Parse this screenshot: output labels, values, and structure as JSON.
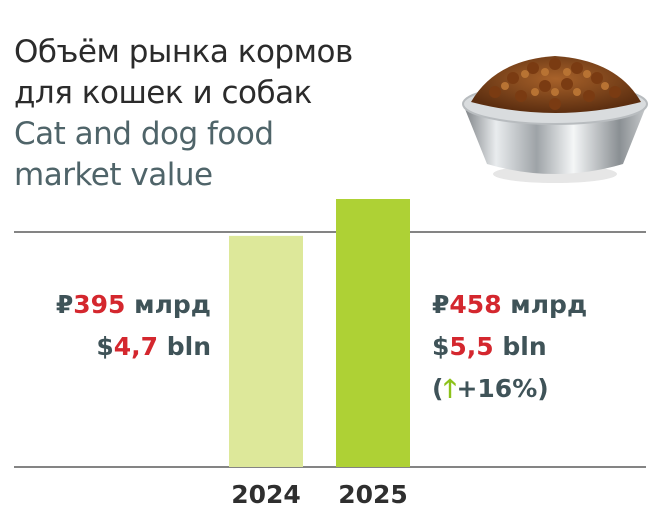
{
  "title": {
    "ru_line1": "Объём рынка кормов",
    "ru_line2": "для кошек и собак",
    "en_line1": "Cat and dog food",
    "en_line2": "market value"
  },
  "chart_data": {
    "type": "bar",
    "categories": [
      "2024",
      "2025"
    ],
    "values": [
      395,
      458
    ],
    "ylim": [
      0,
      458
    ],
    "grid": false,
    "colors": [
      "#dde89a",
      "#aed135"
    ],
    "labels": [
      {
        "rub_symbol": "₽",
        "rub_value": "395",
        "rub_unit": " млрд",
        "usd_symbol": "$",
        "usd_value": "4,7",
        "usd_unit": " bln"
      },
      {
        "rub_symbol": "₽",
        "rub_value": "458",
        "rub_unit": " млрд",
        "usd_symbol": "$",
        "usd_value": "5,5",
        "usd_unit": " bln",
        "change_open": "(",
        "change_arrow": "🡑",
        "change_text": "+16%)"
      }
    ]
  },
  "icons": {
    "illustration": "pet-food-bowl-icon",
    "change_arrow": "arrow-up-icon"
  },
  "colors": {
    "accent_red": "#d4272e",
    "arrow_green": "#8cc21a",
    "label_gray": "#3f5358"
  }
}
